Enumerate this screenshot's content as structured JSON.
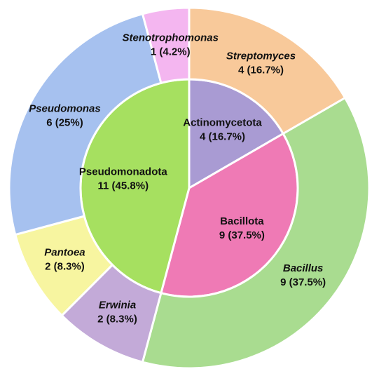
{
  "chart_data": {
    "type": "sunburst",
    "rings": [
      {
        "categories": [
          "Actinomycetota",
          "Bacillota",
          "Pseudomonadota"
        ],
        "values": [
          4,
          9,
          11
        ],
        "value_labels": [
          "4 (16.7%)",
          "9 (37.5%)",
          "11 (45.8%)"
        ],
        "colors": [
          "#a99bd3",
          "#ef7ab5",
          "#a6e060"
        ]
      },
      {
        "categories": [
          "Streptomyces",
          "Bacillus",
          "Erwinia",
          "Pantoea",
          "Pseudomonas",
          "Stenotrophomonas"
        ],
        "values": [
          4,
          9,
          2,
          2,
          6,
          1
        ],
        "value_labels": [
          "4 (16.7%)",
          "9 (37.5%)",
          "2 (8.3%)",
          "2 (8.3%)",
          "6 (25%)",
          "1 (4.2%)"
        ],
        "colors": [
          "#f8c99a",
          "#a9dc90",
          "#c3aad8",
          "#f7f5a0",
          "#a6c1ef",
          "#f4b6f0"
        ]
      }
    ]
  }
}
